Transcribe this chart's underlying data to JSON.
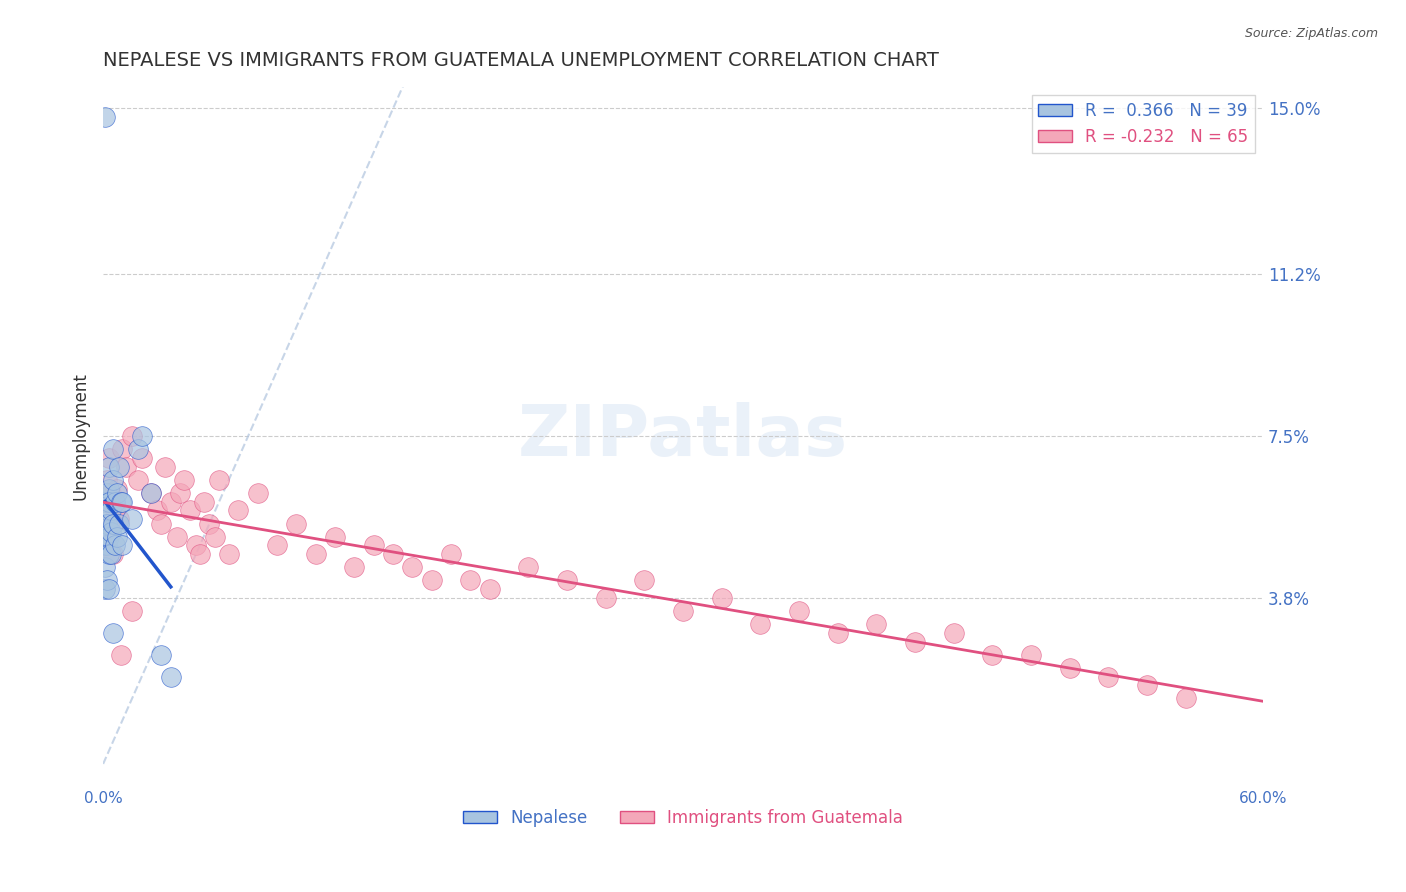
{
  "title": "NEPALESE VS IMMIGRANTS FROM GUATEMALA UNEMPLOYMENT CORRELATION CHART",
  "source": "Source: ZipAtlas.com",
  "ylabel": "Unemployment",
  "x_min": 0.0,
  "x_max": 0.6,
  "y_min": 0.0,
  "y_max": 0.155,
  "x_ticks": [
    0.0,
    0.6
  ],
  "x_tick_labels": [
    "0.0%",
    "60.0%"
  ],
  "y_ticks": [
    0.038,
    0.075,
    0.112,
    0.15
  ],
  "y_tick_labels": [
    "3.8%",
    "7.5%",
    "11.2%",
    "15.0%"
  ],
  "nepalese_R": 0.366,
  "nepalese_N": 39,
  "guatemala_R": -0.232,
  "guatemala_N": 65,
  "nepalese_color": "#a8c4e0",
  "guatemala_color": "#f4a7b9",
  "nepalese_line_color": "#2255cc",
  "guatemala_line_color": "#e05080",
  "diagonal_color": "#b0c4de",
  "background_color": "#ffffff",
  "nepalese_x": [
    0.001,
    0.001,
    0.001,
    0.001,
    0.001,
    0.001,
    0.002,
    0.002,
    0.002,
    0.002,
    0.002,
    0.003,
    0.003,
    0.003,
    0.003,
    0.003,
    0.003,
    0.004,
    0.004,
    0.004,
    0.005,
    0.005,
    0.005,
    0.006,
    0.006,
    0.007,
    0.007,
    0.008,
    0.008,
    0.009,
    0.01,
    0.01,
    0.015,
    0.018,
    0.02,
    0.025,
    0.03,
    0.035,
    0.005
  ],
  "nepalese_y": [
    0.148,
    0.06,
    0.055,
    0.05,
    0.045,
    0.04,
    0.062,
    0.058,
    0.055,
    0.05,
    0.042,
    0.068,
    0.063,
    0.06,
    0.052,
    0.048,
    0.04,
    0.058,
    0.053,
    0.048,
    0.072,
    0.065,
    0.055,
    0.06,
    0.05,
    0.062,
    0.052,
    0.068,
    0.055,
    0.06,
    0.06,
    0.05,
    0.056,
    0.072,
    0.075,
    0.062,
    0.025,
    0.02,
    0.03
  ],
  "guatemala_x": [
    0.001,
    0.001,
    0.002,
    0.003,
    0.003,
    0.004,
    0.005,
    0.006,
    0.007,
    0.008,
    0.01,
    0.012,
    0.015,
    0.018,
    0.02,
    0.025,
    0.028,
    0.03,
    0.032,
    0.035,
    0.038,
    0.04,
    0.042,
    0.045,
    0.048,
    0.05,
    0.052,
    0.055,
    0.058,
    0.06,
    0.065,
    0.07,
    0.08,
    0.09,
    0.1,
    0.11,
    0.12,
    0.13,
    0.14,
    0.15,
    0.16,
    0.17,
    0.18,
    0.19,
    0.2,
    0.22,
    0.24,
    0.26,
    0.28,
    0.3,
    0.32,
    0.34,
    0.36,
    0.38,
    0.4,
    0.42,
    0.44,
    0.46,
    0.48,
    0.5,
    0.52,
    0.54,
    0.56,
    0.009,
    0.015
  ],
  "guatemala_y": [
    0.06,
    0.05,
    0.065,
    0.07,
    0.055,
    0.062,
    0.048,
    0.058,
    0.063,
    0.056,
    0.072,
    0.068,
    0.075,
    0.065,
    0.07,
    0.062,
    0.058,
    0.055,
    0.068,
    0.06,
    0.052,
    0.062,
    0.065,
    0.058,
    0.05,
    0.048,
    0.06,
    0.055,
    0.052,
    0.065,
    0.048,
    0.058,
    0.062,
    0.05,
    0.055,
    0.048,
    0.052,
    0.045,
    0.05,
    0.048,
    0.045,
    0.042,
    0.048,
    0.042,
    0.04,
    0.045,
    0.042,
    0.038,
    0.042,
    0.035,
    0.038,
    0.032,
    0.035,
    0.03,
    0.032,
    0.028,
    0.03,
    0.025,
    0.025,
    0.022,
    0.02,
    0.018,
    0.015,
    0.025,
    0.035
  ]
}
